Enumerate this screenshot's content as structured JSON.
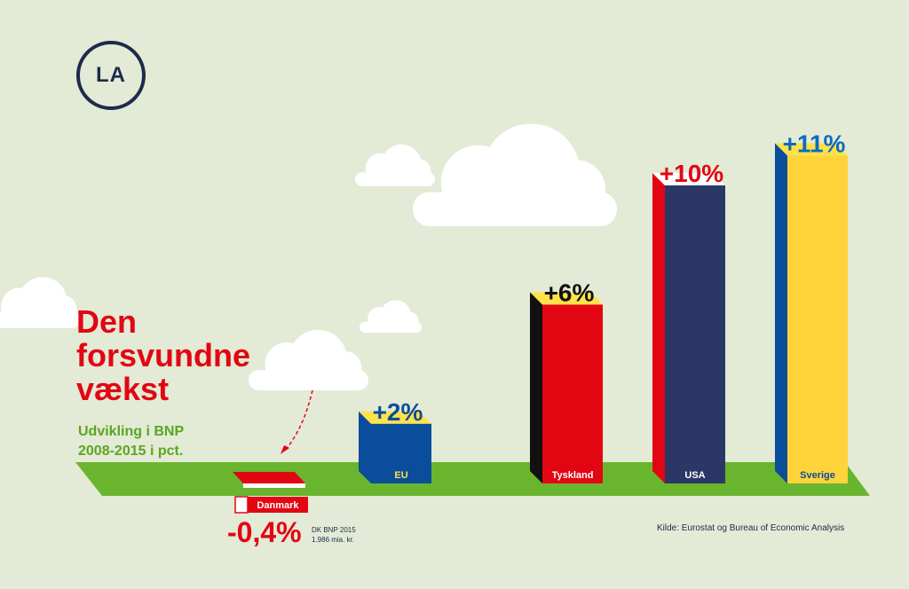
{
  "logo": {
    "text": "LA"
  },
  "title": "Den\nforsvundne\nvækst",
  "subtitle": "Udvikling i BNP\n2008-2015 i pct.",
  "note": {
    "value": "-0,4%",
    "text": "DK BNP 2015\n1.986 mia. kr."
  },
  "source": "Kilde: Eurostat og Bureau of Economic Analysis",
  "colors": {
    "background": "#e3ead6",
    "ground": "#6ab52e",
    "title": "#e20613",
    "subtitle": "#5aa620",
    "navy": "#1e2a4a"
  },
  "chart_data": {
    "type": "bar",
    "title": "Den forsvundne vækst",
    "subtitle": "Udvikling i BNP 2008-2015 i pct.",
    "categories": [
      "Danmark",
      "EU",
      "Tyskland",
      "USA",
      "Sverige"
    ],
    "values": [
      -0.4,
      2,
      6,
      10,
      11
    ],
    "value_labels": [
      "-0,4%",
      "+2%",
      "+6%",
      "+10%",
      "+11%"
    ],
    "bar_colors": {
      "Danmark": {
        "front": "#e20613",
        "side": "#ffffff",
        "top": "#e20613",
        "label_text": "#ffffff",
        "value_color": "#e20613"
      },
      "EU": {
        "front": "#0a4d9a",
        "side": "#0a4d9a",
        "top": "#ffe14a",
        "label_text": "#ffe14a",
        "value_color": "#0a4d9a"
      },
      "Tyskland": {
        "front": "#e20613",
        "side": "#111111",
        "top": "#ffe14a",
        "label_text": "#ffffff",
        "value_color": "#111111"
      },
      "USA": {
        "front": "#2b3867",
        "side": "#e20613",
        "top": "#ffffff",
        "label_text": "#ffffff",
        "value_color": "#e20613"
      },
      "Sverige": {
        "front": "#ffd43b",
        "side": "#0a4d9a",
        "top": "#ffe14a",
        "label_text": "#0a4d9a",
        "value_color": "#0a6cc0"
      }
    }
  }
}
